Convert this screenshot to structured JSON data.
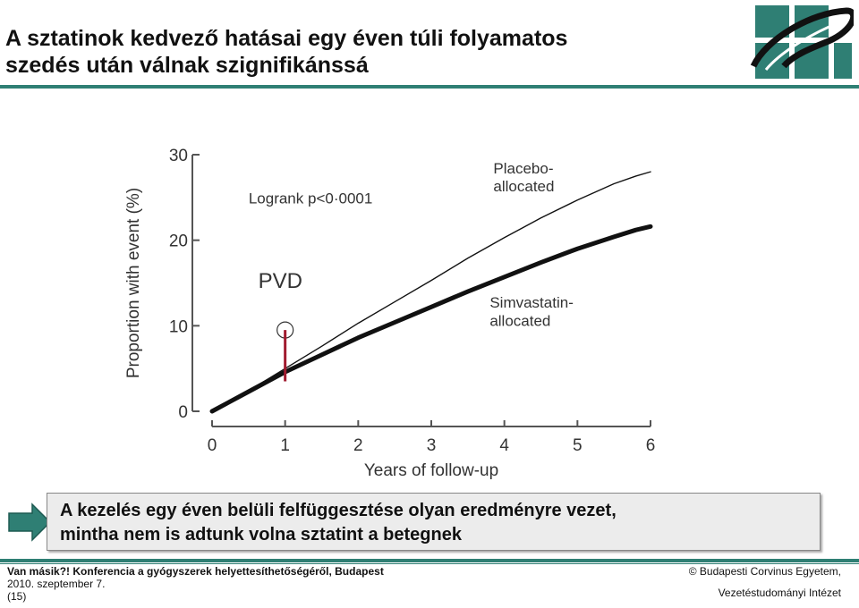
{
  "slide": {
    "title_line1": "A sztatinok kedvező hatásai egy éven túli folyamatos",
    "title_line2": "szedés után válnak szignifikánssá",
    "callout_line1": "A kezelés egy éven belüli felfüggesztése olyan eredményre vezet,",
    "callout_line2": "mintha nem is adtunk volna sztatint a betegnek"
  },
  "footer": {
    "conference": "Van másik?! Konferencia a gyógyszerek helyettesíthetőségéről, Budapest",
    "date": "2010. szeptember 7.",
    "page": "(15)",
    "copyright": "© Budapesti Corvinus Egyetem,",
    "institute": "Vezetéstudományi Intézet"
  },
  "colors": {
    "accent": "#2f7f74",
    "pvd": "#a01a2e"
  },
  "chart_data": {
    "type": "line",
    "xlabel": "Years of follow-up",
    "ylabel": "Proportion with event (%)",
    "xlim": [
      0,
      6
    ],
    "ylim": [
      0,
      30
    ],
    "xticks": [
      "0",
      "1",
      "2",
      "3",
      "4",
      "5",
      "6"
    ],
    "yticks": [
      "0",
      "10",
      "20",
      "30"
    ],
    "grid": false,
    "annotation": "Logrank p<0·0001",
    "marker_label": "PVD",
    "marker_x": 1,
    "series": [
      {
        "name": "Placebo-allocated",
        "x": [
          0,
          0.5,
          1,
          1.5,
          2,
          2.5,
          3,
          3.5,
          4,
          4.5,
          5,
          5.5,
          5.8,
          6
        ],
        "values": [
          0,
          2.4,
          5,
          7.6,
          10.3,
          12.8,
          15.3,
          17.9,
          20.3,
          22.6,
          24.7,
          26.6,
          27.5,
          28
        ]
      },
      {
        "name": "Simvastatin-allocated",
        "x": [
          0,
          0.5,
          1,
          1.5,
          2,
          2.5,
          3,
          3.5,
          4,
          4.5,
          5,
          5.5,
          5.8,
          6
        ],
        "values": [
          0,
          2.3,
          4.6,
          6.6,
          8.6,
          10.4,
          12.2,
          14,
          15.7,
          17.4,
          19,
          20.4,
          21.2,
          21.6
        ]
      }
    ]
  }
}
